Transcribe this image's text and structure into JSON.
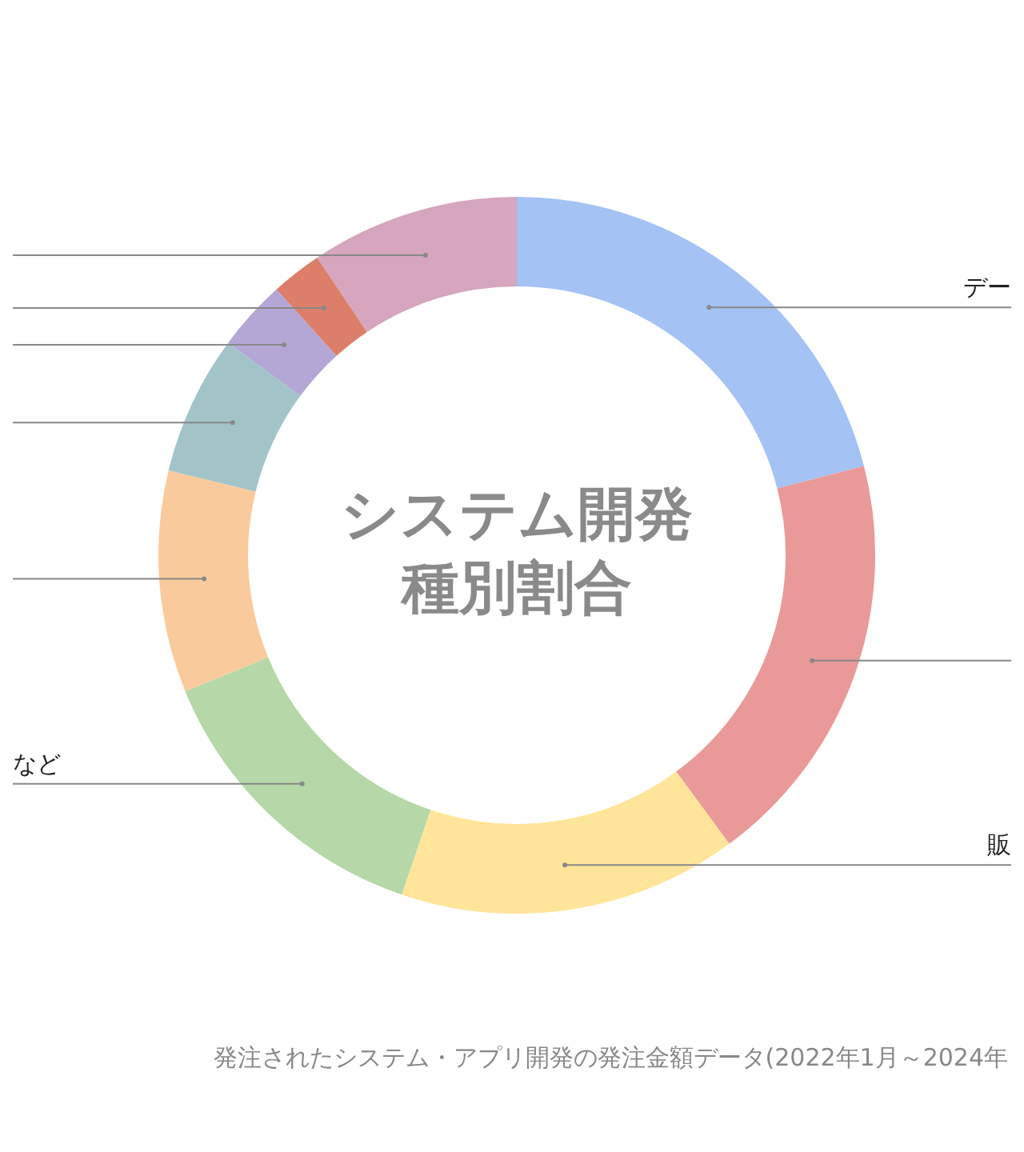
{
  "chart_data": {
    "type": "donut",
    "title": "システム開発種別割合",
    "categories": [
      "デー",
      null,
      "販",
      "など",
      null,
      null,
      null,
      null,
      null
    ],
    "values": [
      21.0,
      18.9,
      15.3,
      13.6,
      10.0,
      6.3,
      3.2,
      2.3,
      9.4
    ],
    "colors": [
      "#a4c2f4",
      "#ea9999",
      "#ffe599",
      "#b6d7a8",
      "#f9cb9c",
      "#a2c4c9",
      "#b4a7d6",
      "#dd7e6b",
      "#d5a6bd"
    ],
    "legend": false,
    "annotations": [
      "発注されたシステム・アプリ開発の発注金額データ(2022年1月～2024年"
    ]
  }
}
